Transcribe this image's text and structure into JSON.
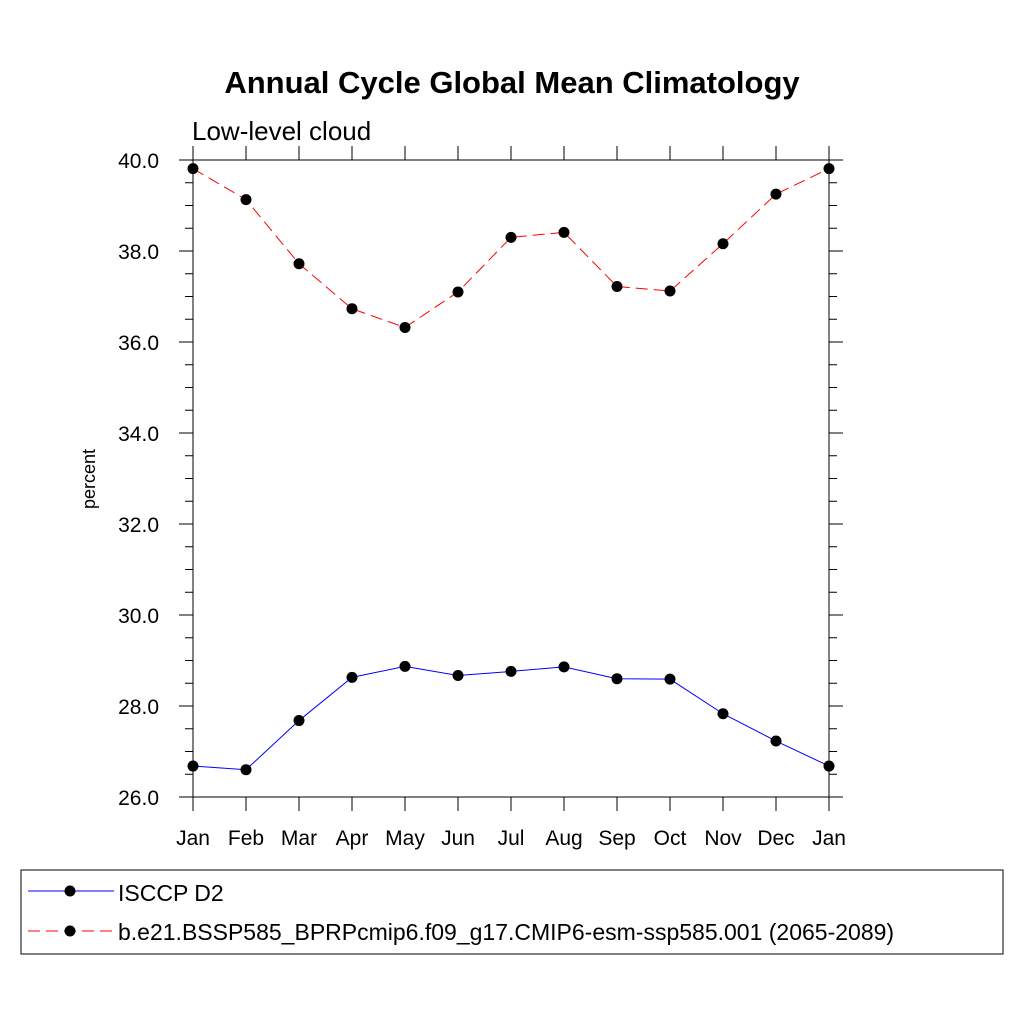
{
  "chart_data": {
    "type": "line",
    "title": "Annual Cycle Global Mean Climatology",
    "subtitle": "Low-level cloud",
    "xlabel": "",
    "ylabel": "percent",
    "categories": [
      "Jan",
      "Feb",
      "Mar",
      "Apr",
      "May",
      "Jun",
      "Jul",
      "Aug",
      "Sep",
      "Oct",
      "Nov",
      "Dec",
      "Jan"
    ],
    "ylim": [
      26.0,
      40.0
    ],
    "yticks": [
      "26.0",
      "28.0",
      "30.0",
      "32.0",
      "34.0",
      "36.0",
      "38.0",
      "40.0"
    ],
    "grid": false,
    "legend_position": "bottom",
    "series": [
      {
        "name": "ISCCP D2",
        "color": "#0000ff",
        "dash": "solid",
        "marker": "circle",
        "values": [
          26.68,
          26.6,
          27.68,
          28.63,
          28.87,
          28.67,
          28.76,
          28.86,
          28.6,
          28.59,
          27.83,
          27.23,
          26.68
        ]
      },
      {
        "name": "b.e21.BSSP585_BPRPcmip6.f09_g17.CMIP6-esm-ssp585.001 (2065-2089)",
        "color": "#ff0000",
        "dash": "dashed",
        "marker": "circle",
        "values": [
          39.81,
          39.13,
          37.72,
          36.73,
          36.32,
          37.1,
          38.3,
          38.41,
          37.22,
          37.12,
          38.16,
          39.25,
          39.81
        ]
      }
    ]
  }
}
